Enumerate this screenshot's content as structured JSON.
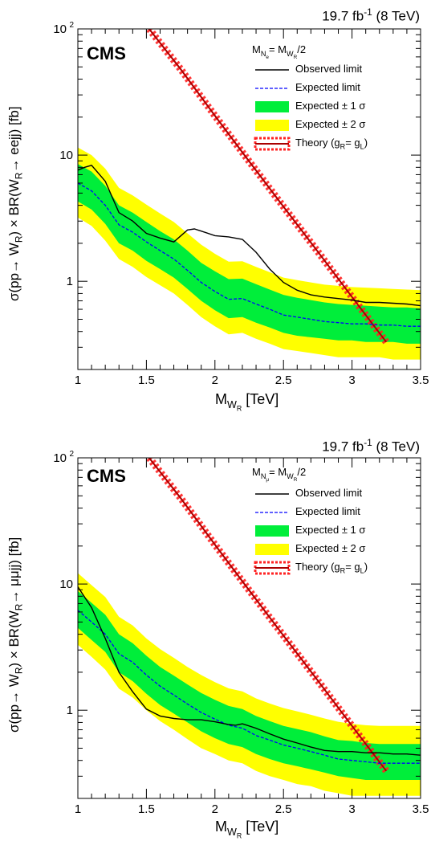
{
  "lumi_label": "19.7 fb",
  "lumi_sup": "-1",
  "lumi_energy": " (8 TeV)",
  "experiment": "CMS",
  "legend": {
    "observed": "Observed limit",
    "expected": "Expected limit",
    "band1": "Expected ± 1 σ",
    "band2": "Expected ± 2 σ",
    "theory": "Theory (g",
    "theory_R": "R",
    "theory_mid": "= g",
    "theory_L": "L",
    "theory_end": ")"
  },
  "colors": {
    "band1": "#00ee3a",
    "band2": "#ffff00",
    "observed": "#000000",
    "expected": "#0000ff",
    "theory": "#aa0000",
    "theory_band": "#ff2222"
  },
  "chart_data": [
    {
      "type": "line",
      "channel": "ee",
      "xlabel": "M",
      "xlabel_sub": "W",
      "xlabel_subsub": "R",
      "xlabel_unit": " [TeV]",
      "ylabel": "σ(pp→ W",
      "ylabel_sub": "R",
      "ylabel_mid": ") × BR(W",
      "ylabel_sub2": "R",
      "ylabel_end": "→ eejj) [fb]",
      "mass_note": "M",
      "mass_note_sub": "N",
      "mass_note_subsub": "e",
      "mass_note_eq": "= M",
      "mass_note_sub2": "W",
      "mass_note_subsub2": "R",
      "mass_note_end": "/2",
      "xlim": [
        1,
        3.5
      ],
      "ylim": [
        0.2,
        100
      ],
      "ylog": true,
      "x_ticks": [
        "1",
        "1.5",
        "2",
        "2.5",
        "3",
        "3.5"
      ],
      "y_ticks": [
        "1",
        "10",
        "10"
      ],
      "y_tick_sup": "2",
      "series": [
        {
          "name": "Observed limit",
          "x": [
            1.0,
            1.05,
            1.1,
            1.2,
            1.3,
            1.4,
            1.5,
            1.6,
            1.7,
            1.8,
            1.85,
            1.9,
            2.0,
            2.1,
            2.2,
            2.3,
            2.4,
            2.5,
            2.6,
            2.7,
            2.8,
            2.9,
            3.0,
            3.1,
            3.2,
            3.3,
            3.4,
            3.5
          ],
          "y": [
            7.6,
            8.0,
            8.3,
            6.2,
            3.5,
            3.0,
            2.4,
            2.2,
            2.05,
            2.55,
            2.6,
            2.5,
            2.3,
            2.25,
            2.15,
            1.7,
            1.25,
            0.98,
            0.85,
            0.78,
            0.75,
            0.73,
            0.71,
            0.68,
            0.68,
            0.67,
            0.66,
            0.64
          ]
        },
        {
          "name": "Expected limit",
          "x": [
            1.0,
            1.1,
            1.2,
            1.3,
            1.4,
            1.5,
            1.6,
            1.7,
            1.8,
            1.9,
            2.0,
            2.1,
            2.2,
            2.3,
            2.4,
            2.5,
            2.6,
            2.7,
            2.8,
            2.9,
            3.0,
            3.1,
            3.2,
            3.3,
            3.4,
            3.5
          ],
          "y": [
            6.0,
            5.2,
            4.0,
            2.8,
            2.45,
            2.05,
            1.75,
            1.5,
            1.22,
            0.98,
            0.83,
            0.72,
            0.73,
            0.66,
            0.6,
            0.54,
            0.52,
            0.5,
            0.48,
            0.47,
            0.46,
            0.46,
            0.45,
            0.45,
            0.44,
            0.44
          ]
        },
        {
          "name": "Expected ± 1 σ",
          "x": [
            1.0,
            1.1,
            1.2,
            1.3,
            1.4,
            1.5,
            1.6,
            1.7,
            1.8,
            1.9,
            2.0,
            2.1,
            2.2,
            2.3,
            2.4,
            2.5,
            2.6,
            2.7,
            2.8,
            2.9,
            3.0,
            3.1,
            3.2,
            3.3,
            3.4,
            3.5
          ],
          "low": [
            4.3,
            3.7,
            2.85,
            2.0,
            1.75,
            1.45,
            1.25,
            1.07,
            0.87,
            0.7,
            0.59,
            0.51,
            0.52,
            0.47,
            0.43,
            0.39,
            0.37,
            0.36,
            0.35,
            0.34,
            0.34,
            0.33,
            0.33,
            0.33,
            0.32,
            0.32
          ],
          "high": [
            8.5,
            7.4,
            5.7,
            4.0,
            3.5,
            2.95,
            2.5,
            2.15,
            1.75,
            1.4,
            1.2,
            1.04,
            1.05,
            0.95,
            0.86,
            0.78,
            0.74,
            0.71,
            0.68,
            0.66,
            0.65,
            0.64,
            0.63,
            0.62,
            0.62,
            0.61
          ]
        },
        {
          "name": "Expected ± 2 σ",
          "x": [
            1.0,
            1.1,
            1.2,
            1.3,
            1.4,
            1.5,
            1.6,
            1.7,
            1.8,
            1.9,
            2.0,
            2.1,
            2.2,
            2.3,
            2.4,
            2.5,
            2.6,
            2.7,
            2.8,
            2.9,
            3.0,
            3.1,
            3.2,
            3.3,
            3.4,
            3.5
          ],
          "low": [
            3.2,
            2.75,
            2.1,
            1.5,
            1.3,
            1.08,
            0.93,
            0.8,
            0.65,
            0.52,
            0.44,
            0.38,
            0.39,
            0.35,
            0.32,
            0.29,
            0.28,
            0.27,
            0.26,
            0.25,
            0.25,
            0.25,
            0.25,
            0.24,
            0.24,
            0.24
          ],
          "high": [
            11.5,
            10.0,
            7.8,
            5.5,
            4.8,
            4.05,
            3.45,
            2.95,
            2.4,
            1.95,
            1.65,
            1.43,
            1.44,
            1.3,
            1.18,
            1.07,
            1.02,
            0.98,
            0.94,
            0.92,
            0.9,
            0.89,
            0.88,
            0.87,
            0.86,
            0.85
          ]
        },
        {
          "name": "Theory (gR = gL)",
          "x": [
            1.52,
            1.75,
            2.0,
            2.25,
            2.5,
            2.75,
            3.0,
            3.25
          ],
          "y": [
            100,
            48,
            20.5,
            8.9,
            3.9,
            1.72,
            0.75,
            0.33
          ]
        }
      ]
    },
    {
      "type": "line",
      "channel": "μμ",
      "xlabel": "M",
      "xlabel_sub": "W",
      "xlabel_subsub": "R",
      "xlabel_unit": " [TeV]",
      "ylabel": "σ(pp→ W",
      "ylabel_sub": "R",
      "ylabel_mid": ") × BR(W",
      "ylabel_sub2": "R",
      "ylabel_end": "→ μμjj) [fb]",
      "mass_note": "M",
      "mass_note_sub": "N",
      "mass_note_subsub": "μ",
      "mass_note_eq": "= M",
      "mass_note_sub2": "W",
      "mass_note_subsub2": "R",
      "mass_note_end": "/2",
      "xlim": [
        1,
        3.5
      ],
      "ylim": [
        0.2,
        100
      ],
      "ylog": true,
      "x_ticks": [
        "1",
        "1.5",
        "2",
        "2.5",
        "3",
        "3.5"
      ],
      "y_ticks": [
        "1",
        "10",
        "10"
      ],
      "y_tick_sup": "2",
      "series": [
        {
          "name": "Observed limit",
          "x": [
            1.0,
            1.1,
            1.2,
            1.3,
            1.4,
            1.5,
            1.6,
            1.7,
            1.8,
            1.9,
            2.0,
            2.1,
            2.15,
            2.2,
            2.3,
            2.4,
            2.5,
            2.6,
            2.7,
            2.8,
            2.9,
            3.0,
            3.1,
            3.2,
            3.3,
            3.4,
            3.5
          ],
          "y": [
            9.5,
            6.5,
            3.7,
            2.0,
            1.4,
            1.02,
            0.9,
            0.86,
            0.84,
            0.84,
            0.81,
            0.77,
            0.76,
            0.78,
            0.72,
            0.65,
            0.59,
            0.55,
            0.51,
            0.48,
            0.47,
            0.47,
            0.46,
            0.46,
            0.45,
            0.45,
            0.44
          ]
        },
        {
          "name": "Expected limit",
          "x": [
            1.0,
            1.1,
            1.2,
            1.3,
            1.4,
            1.5,
            1.6,
            1.7,
            1.8,
            1.9,
            2.0,
            2.1,
            2.2,
            2.3,
            2.4,
            2.5,
            2.6,
            2.7,
            2.8,
            2.9,
            3.0,
            3.1,
            3.2,
            3.3,
            3.4,
            3.5
          ],
          "y": [
            6.2,
            5.0,
            4.0,
            2.8,
            2.4,
            1.9,
            1.55,
            1.32,
            1.12,
            0.96,
            0.85,
            0.76,
            0.72,
            0.63,
            0.58,
            0.53,
            0.5,
            0.47,
            0.44,
            0.41,
            0.4,
            0.39,
            0.38,
            0.38,
            0.38,
            0.38
          ]
        },
        {
          "name": "Expected ± 1 σ",
          "x": [
            1.0,
            1.1,
            1.2,
            1.3,
            1.4,
            1.5,
            1.6,
            1.7,
            1.8,
            1.9,
            2.0,
            2.1,
            2.2,
            2.3,
            2.4,
            2.5,
            2.6,
            2.7,
            2.8,
            2.9,
            3.0,
            3.1,
            3.2,
            3.3,
            3.4,
            3.5
          ],
          "low": [
            4.5,
            3.6,
            2.9,
            2.0,
            1.7,
            1.35,
            1.1,
            0.94,
            0.8,
            0.68,
            0.6,
            0.54,
            0.51,
            0.45,
            0.41,
            0.38,
            0.36,
            0.34,
            0.32,
            0.3,
            0.29,
            0.28,
            0.28,
            0.28,
            0.28,
            0.28
          ],
          "high": [
            8.8,
            7.1,
            5.7,
            4.0,
            3.4,
            2.7,
            2.2,
            1.88,
            1.6,
            1.37,
            1.21,
            1.08,
            1.02,
            0.9,
            0.82,
            0.75,
            0.71,
            0.67,
            0.62,
            0.58,
            0.57,
            0.55,
            0.54,
            0.54,
            0.54,
            0.54
          ]
        },
        {
          "name": "Expected ± 2 σ",
          "x": [
            1.0,
            1.1,
            1.2,
            1.3,
            1.4,
            1.5,
            1.6,
            1.7,
            1.8,
            1.9,
            2.0,
            2.1,
            2.2,
            2.3,
            2.4,
            2.5,
            2.6,
            2.7,
            2.8,
            2.9,
            3.0,
            3.1,
            3.2,
            3.3,
            3.4,
            3.5
          ],
          "low": [
            3.3,
            2.65,
            2.1,
            1.48,
            1.26,
            1.0,
            0.82,
            0.7,
            0.59,
            0.5,
            0.45,
            0.4,
            0.38,
            0.33,
            0.3,
            0.28,
            0.26,
            0.25,
            0.23,
            0.22,
            0.21,
            0.21,
            0.21,
            0.21,
            0.21,
            0.21
          ],
          "high": [
            12.2,
            9.8,
            7.9,
            5.5,
            4.7,
            3.7,
            3.05,
            2.6,
            2.2,
            1.9,
            1.67,
            1.49,
            1.41,
            1.24,
            1.13,
            1.04,
            0.98,
            0.92,
            0.86,
            0.81,
            0.78,
            0.76,
            0.75,
            0.75,
            0.75,
            0.75
          ]
        },
        {
          "name": "Theory (gR = gL)",
          "x": [
            1.52,
            1.75,
            2.0,
            2.25,
            2.5,
            2.75,
            3.0,
            3.25
          ],
          "y": [
            100,
            48,
            20.5,
            8.9,
            3.9,
            1.72,
            0.75,
            0.33
          ]
        }
      ]
    }
  ]
}
